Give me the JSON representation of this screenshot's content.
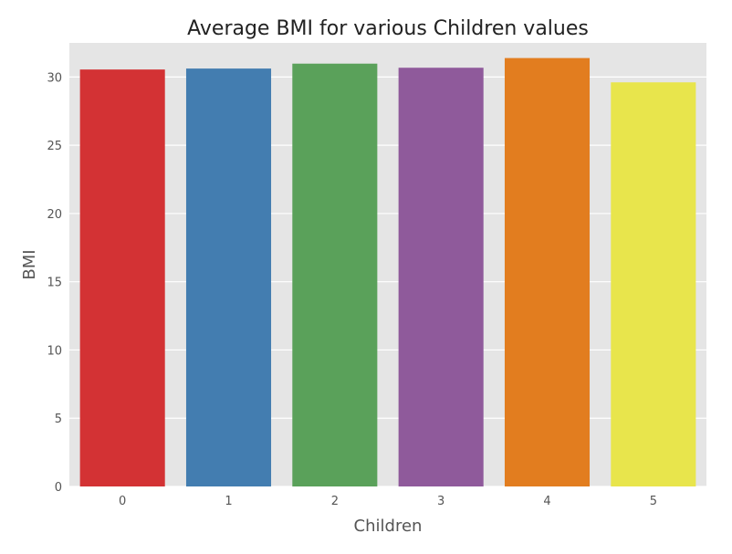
{
  "chart_data": {
    "type": "bar",
    "title": "Average BMI for various Children values",
    "xlabel": "Children",
    "ylabel": "BMI",
    "categories": [
      "0",
      "1",
      "2",
      "3",
      "4",
      "5"
    ],
    "values": [
      30.55,
      30.62,
      30.98,
      30.68,
      31.39,
      29.61
    ],
    "colors": [
      "#d33234",
      "#437db0",
      "#5aa15a",
      "#8f5a9b",
      "#e27d1f",
      "#e8e54c"
    ],
    "ylim": [
      0,
      32.5
    ],
    "yticks": [
      0,
      5,
      10,
      15,
      20,
      25,
      30
    ],
    "grid": true,
    "plot_background": "#e5e5e5",
    "grid_color": "#ffffff",
    "legend": "none"
  }
}
